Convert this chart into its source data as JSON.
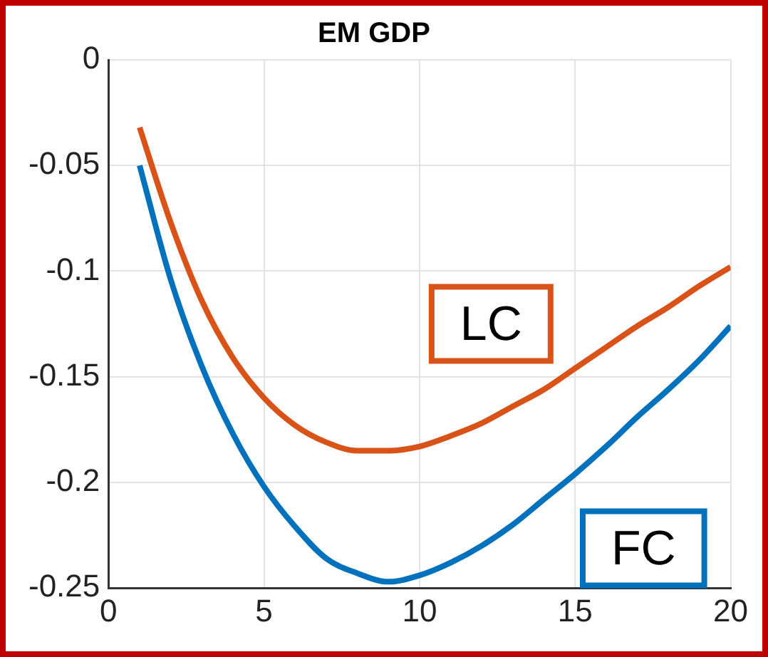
{
  "chart_data": {
    "type": "line",
    "title": "EM GDP",
    "x": [
      1,
      2,
      3,
      4,
      5,
      6,
      7,
      8,
      9,
      10,
      11,
      12,
      13,
      14,
      15,
      16,
      17,
      18,
      19,
      20
    ],
    "series": [
      {
        "name": "LC",
        "color": "#d95319",
        "values": [
          -0.032,
          -0.077,
          -0.114,
          -0.141,
          -0.16,
          -0.173,
          -0.181,
          -0.185,
          -0.185,
          -0.183,
          -0.178,
          -0.172,
          -0.164,
          -0.156,
          -0.146,
          -0.136,
          -0.126,
          -0.117,
          -0.107,
          -0.098
        ]
      },
      {
        "name": "FC",
        "color": "#0072bd",
        "values": [
          -0.05,
          -0.104,
          -0.145,
          -0.177,
          -0.202,
          -0.221,
          -0.236,
          -0.243,
          -0.247,
          -0.244,
          -0.238,
          -0.23,
          -0.22,
          -0.208,
          -0.196,
          -0.183,
          -0.169,
          -0.156,
          -0.142,
          -0.126
        ]
      }
    ],
    "xlim": [
      0,
      20
    ],
    "xticks": [
      0,
      5,
      10,
      15,
      20
    ],
    "ylim": [
      -0.25,
      0
    ],
    "yticks": [
      -0.25,
      -0.2,
      -0.15,
      -0.1,
      -0.05,
      0
    ],
    "grid": true,
    "legend": false,
    "marker": "none",
    "line_style": "solid"
  }
}
